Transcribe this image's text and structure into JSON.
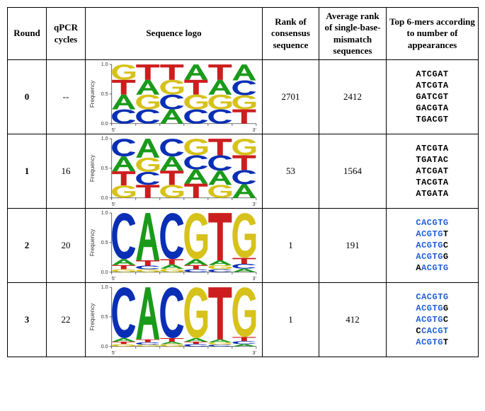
{
  "colors": {
    "A": "#1a9a1a",
    "C": "#0a2fb5",
    "G": "#d6c21a",
    "T": "#cc1e1e",
    "highlight": "#1f5fd6",
    "black": "#000000",
    "axis": "#444444",
    "background": "#ffffff"
  },
  "columns": {
    "round": "Round",
    "qpcr": "qPCR cycles",
    "logo": "Sequence logo",
    "rank": "Rank of consensus sequence",
    "avgrank": "Average rank of single-base-mismatch sequences",
    "sixmers": "Top 6-mers according to number of appearances"
  },
  "col_widths": {
    "round": 55,
    "qpcr": 55,
    "logo": 250,
    "rank": 80,
    "avgrank": 95,
    "sixmers": 130
  },
  "logo_axis": {
    "title": "Frequency",
    "yticks": [
      "0.0",
      "0.5",
      "1.0"
    ],
    "xleft": "5'",
    "xright": "3'"
  },
  "rows": [
    {
      "round": "0",
      "qpcr": "--",
      "rank": "2701",
      "avgrank": "2412",
      "logo": {
        "type": "sequence_logo",
        "columns": [
          [
            [
              "G",
              0.26
            ],
            [
              "T",
              0.25
            ],
            [
              "A",
              0.25
            ],
            [
              "C",
              0.24
            ]
          ],
          [
            [
              "T",
              0.26
            ],
            [
              "A",
              0.25
            ],
            [
              "G",
              0.25
            ],
            [
              "C",
              0.24
            ]
          ],
          [
            [
              "T",
              0.26
            ],
            [
              "G",
              0.25
            ],
            [
              "C",
              0.25
            ],
            [
              "A",
              0.24
            ]
          ],
          [
            [
              "A",
              0.26
            ],
            [
              "T",
              0.25
            ],
            [
              "G",
              0.25
            ],
            [
              "C",
              0.24
            ]
          ],
          [
            [
              "T",
              0.26
            ],
            [
              "A",
              0.25
            ],
            [
              "G",
              0.25
            ],
            [
              "C",
              0.24
            ]
          ],
          [
            [
              "A",
              0.27
            ],
            [
              "C",
              0.25
            ],
            [
              "G",
              0.24
            ],
            [
              "T",
              0.24
            ]
          ]
        ]
      },
      "sixmers": [
        [
          [
            "ATCGAT",
            "k"
          ]
        ],
        [
          [
            "ATCGTA",
            "k"
          ]
        ],
        [
          [
            "GATCGT",
            "k"
          ]
        ],
        [
          [
            "GACGTA",
            "k"
          ]
        ],
        [
          [
            "TGACGT",
            "k"
          ]
        ]
      ]
    },
    {
      "round": "1",
      "qpcr": "16",
      "rank": "53",
      "avgrank": "1564",
      "logo": {
        "type": "sequence_logo",
        "columns": [
          [
            [
              "C",
              0.3
            ],
            [
              "A",
              0.25
            ],
            [
              "T",
              0.24
            ],
            [
              "G",
              0.21
            ]
          ],
          [
            [
              "A",
              0.32
            ],
            [
              "G",
              0.24
            ],
            [
              "C",
              0.22
            ],
            [
              "T",
              0.22
            ]
          ],
          [
            [
              "C",
              0.3
            ],
            [
              "A",
              0.24
            ],
            [
              "T",
              0.24
            ],
            [
              "G",
              0.22
            ]
          ],
          [
            [
              "G",
              0.28
            ],
            [
              "C",
              0.24
            ],
            [
              "A",
              0.24
            ],
            [
              "T",
              0.24
            ]
          ],
          [
            [
              "T",
              0.28
            ],
            [
              "C",
              0.26
            ],
            [
              "A",
              0.24
            ],
            [
              "G",
              0.22
            ]
          ],
          [
            [
              "G",
              0.28
            ],
            [
              "T",
              0.25
            ],
            [
              "C",
              0.24
            ],
            [
              "A",
              0.23
            ]
          ]
        ]
      },
      "sixmers": [
        [
          [
            "ATCGTA",
            "k"
          ]
        ],
        [
          [
            "TGATAC",
            "k"
          ]
        ],
        [
          [
            "ATCGAT",
            "k"
          ]
        ],
        [
          [
            "TACGTA",
            "k"
          ]
        ],
        [
          [
            "ATGATA",
            "k"
          ]
        ]
      ]
    },
    {
      "round": "2",
      "qpcr": "20",
      "rank": "1",
      "avgrank": "191",
      "logo": {
        "type": "sequence_logo",
        "columns": [
          [
            [
              "C",
              0.78
            ],
            [
              "A",
              0.1
            ],
            [
              "T",
              0.07
            ],
            [
              "G",
              0.05
            ]
          ],
          [
            [
              "A",
              0.8
            ],
            [
              "T",
              0.09
            ],
            [
              "C",
              0.06
            ],
            [
              "G",
              0.05
            ]
          ],
          [
            [
              "C",
              0.78
            ],
            [
              "T",
              0.09
            ],
            [
              "A",
              0.07
            ],
            [
              "G",
              0.06
            ]
          ],
          [
            [
              "G",
              0.78
            ],
            [
              "A",
              0.1
            ],
            [
              "T",
              0.07
            ],
            [
              "C",
              0.05
            ]
          ],
          [
            [
              "T",
              0.8
            ],
            [
              "A",
              0.08
            ],
            [
              "G",
              0.07
            ],
            [
              "C",
              0.05
            ]
          ],
          [
            [
              "G",
              0.76
            ],
            [
              "T",
              0.1
            ],
            [
              "C",
              0.08
            ],
            [
              "A",
              0.06
            ]
          ]
        ]
      },
      "sixmers": [
        [
          [
            "CACGTG",
            "b"
          ]
        ],
        [
          [
            "ACGTG",
            "b"
          ],
          [
            "T",
            "k"
          ]
        ],
        [
          [
            "ACGTG",
            "b"
          ],
          [
            "C",
            "k"
          ]
        ],
        [
          [
            "ACGTG",
            "b"
          ],
          [
            "G",
            "k"
          ]
        ],
        [
          [
            "A",
            "k"
          ],
          [
            "ACGTG",
            "b"
          ]
        ]
      ]
    },
    {
      "round": "3",
      "qpcr": "22",
      "rank": "1",
      "avgrank": "412",
      "logo": {
        "type": "sequence_logo",
        "columns": [
          [
            [
              "C",
              0.86
            ],
            [
              "A",
              0.06
            ],
            [
              "T",
              0.04
            ],
            [
              "G",
              0.04
            ]
          ],
          [
            [
              "A",
              0.88
            ],
            [
              "T",
              0.05
            ],
            [
              "C",
              0.04
            ],
            [
              "G",
              0.03
            ]
          ],
          [
            [
              "C",
              0.86
            ],
            [
              "T",
              0.06
            ],
            [
              "A",
              0.04
            ],
            [
              "G",
              0.04
            ]
          ],
          [
            [
              "G",
              0.86
            ],
            [
              "A",
              0.06
            ],
            [
              "T",
              0.04
            ],
            [
              "C",
              0.04
            ]
          ],
          [
            [
              "T",
              0.88
            ],
            [
              "A",
              0.05
            ],
            [
              "G",
              0.04
            ],
            [
              "C",
              0.03
            ]
          ],
          [
            [
              "G",
              0.84
            ],
            [
              "T",
              0.07
            ],
            [
              "C",
              0.05
            ],
            [
              "A",
              0.04
            ]
          ]
        ]
      },
      "sixmers": [
        [
          [
            "CACGTG",
            "b"
          ]
        ],
        [
          [
            "ACGTG",
            "b"
          ],
          [
            "G",
            "k"
          ]
        ],
        [
          [
            "ACGTG",
            "b"
          ],
          [
            "C",
            "k"
          ]
        ],
        [
          [
            "C",
            "k"
          ],
          [
            "CACGT",
            "b"
          ]
        ],
        [
          [
            "ACGTG",
            "b"
          ],
          [
            "T",
            "k"
          ]
        ]
      ]
    }
  ]
}
